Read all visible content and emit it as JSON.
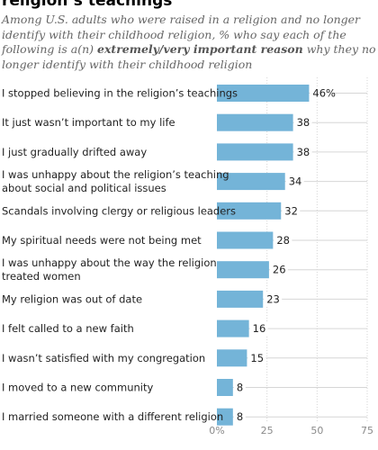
{
  "header": {
    "title": "religion’s teachings",
    "subtitle_pre": "Among U.S. adults who were raised in a religion and no longer identify with their childhood religion, % who say each of the following is a(n) ",
    "subtitle_emph": "extremely/very important reason",
    "subtitle_post": " why they no longer identify with their childhood religion"
  },
  "colors": {
    "bar": "#74b4d8",
    "gridline": "#d6d6d6",
    "text": "#222222",
    "tick": "#8a8a8a"
  },
  "chart_data": {
    "type": "bar",
    "orientation": "horizontal",
    "categories": [
      [
        "I stopped believing in the religion’s teachings"
      ],
      [
        "It just wasn’t important to my life"
      ],
      [
        "I just gradually drifted away"
      ],
      [
        "I was unhappy about the religion’s teaching",
        "about social and political issues"
      ],
      [
        "Scandals involving clergy or religious leaders"
      ],
      [
        "My spiritual needs were not being met"
      ],
      [
        "I was unhappy about the way the religion",
        "treated women"
      ],
      [
        "My religion was out of date"
      ],
      [
        "I felt called to a new faith"
      ],
      [
        "I wasn’t satisfied with my congregation"
      ],
      [
        "I moved to a new community"
      ],
      [
        "I married someone with a different religion"
      ]
    ],
    "values": [
      46,
      38,
      38,
      34,
      32,
      28,
      26,
      23,
      16,
      15,
      8,
      8
    ],
    "value_labels": [
      "46%",
      "38",
      "38",
      "34",
      "32",
      "28",
      "26",
      "23",
      "16",
      "15",
      "8",
      "8"
    ],
    "xticks": [
      0,
      25,
      50,
      75
    ],
    "xtick_labels": [
      "0%",
      "25",
      "50",
      "75"
    ],
    "xlim": [
      0,
      75
    ],
    "grid": true
  }
}
